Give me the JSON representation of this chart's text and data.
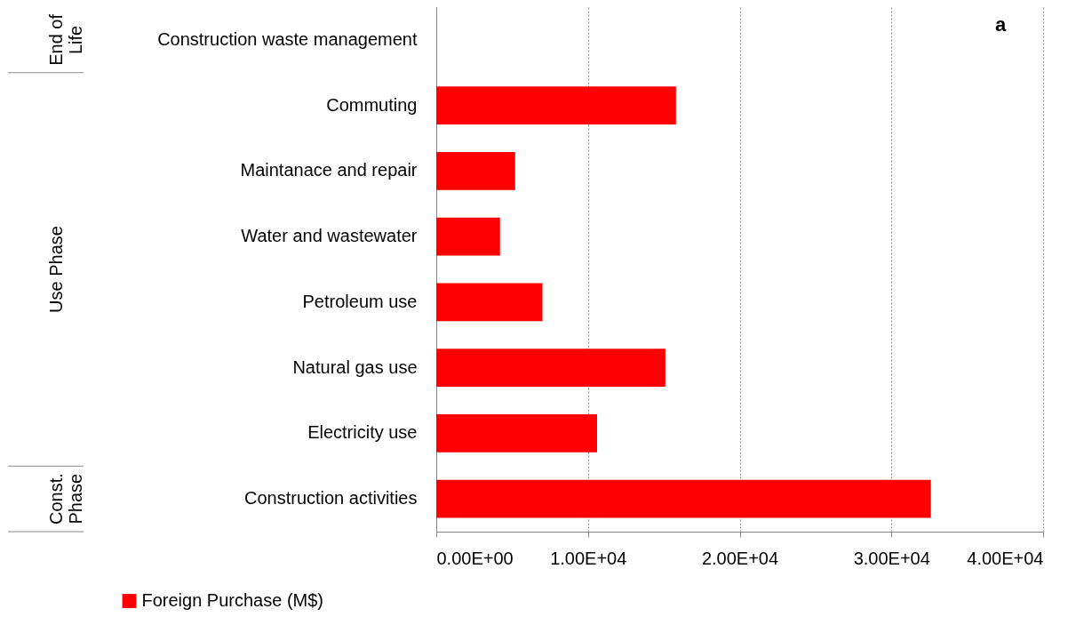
{
  "chart_data": {
    "type": "bar",
    "orientation": "horizontal",
    "categories": [
      "Construction waste management",
      "Commuting",
      "Maintanace and repair",
      "Water and wastewater",
      "Petroleum use",
      "Natural gas use",
      "Electricity use",
      "Construction activities"
    ],
    "series": [
      {
        "name": "Foreign Purchase (M$)",
        "color": "#ff0000",
        "values": [
          0,
          15800,
          5200,
          4200,
          7000,
          15100,
          10600,
          32600
        ]
      }
    ],
    "xlim": [
      0,
      40000
    ],
    "xticks": [
      {
        "value": 0,
        "label": "0.00E+00"
      },
      {
        "value": 10000,
        "label": "1.00E+04"
      },
      {
        "value": 20000,
        "label": "2.00E+04"
      },
      {
        "value": 30000,
        "label": "3.00E+04"
      },
      {
        "value": 40000,
        "label": "4.00E+04"
      }
    ],
    "grid": "x",
    "legend": "bottom",
    "annotations": [
      "a",
      "End of Life",
      "Use Phase",
      "Const. Phase"
    ]
  }
}
